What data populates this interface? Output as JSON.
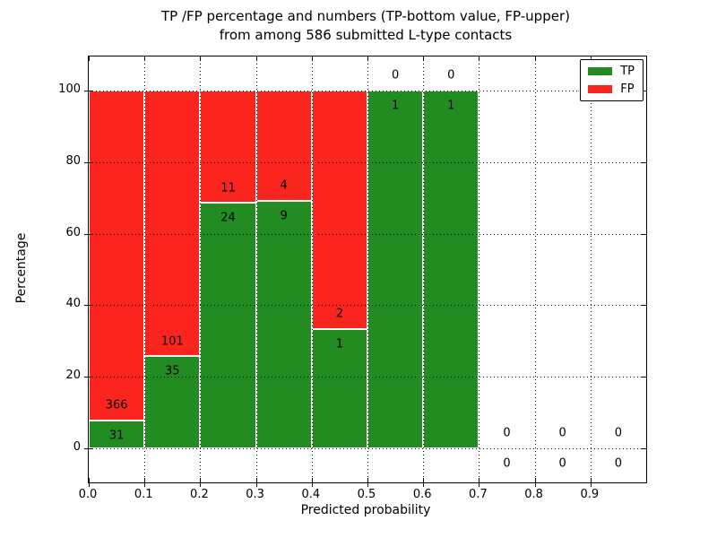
{
  "figure": {
    "title_line1": "TP /FP percentage and numbers (TP-bottom value, FP-upper)",
    "title_line2": "from among 586 submitted L-type contacts",
    "xlabel": "Predicted probability",
    "ylabel": "Percentage"
  },
  "legend": {
    "items": [
      {
        "label": "TP",
        "color": "#228B22"
      },
      {
        "label": "FP",
        "color": "#FA251E"
      }
    ]
  },
  "colors": {
    "tp_green": "#228B22",
    "fp_red": "#FA251E",
    "bar_edge": "#FFFFFF",
    "axis": "#000000",
    "background": "#FFFFFF"
  },
  "chart_data": {
    "type": "bar",
    "stacked": true,
    "title": "TP /FP percentage and numbers (TP-bottom value, FP-upper) from among 586 submitted L-type contacts",
    "xlabel": "Predicted probability",
    "ylabel": "Percentage",
    "xlim": [
      0.0,
      1.0
    ],
    "ylim": [
      -9.5,
      109.5
    ],
    "x_tick_values": [
      0.0,
      0.1,
      0.2,
      0.3,
      0.4,
      0.5,
      0.6,
      0.7,
      0.8,
      0.9
    ],
    "x_tick_labels": [
      "0.0",
      "0.1",
      "0.2",
      "0.3",
      "0.4",
      "0.5",
      "0.6",
      "0.7",
      "0.8",
      "0.9"
    ],
    "y_tick_values": [
      0,
      20,
      40,
      60,
      80,
      100
    ],
    "y_tick_labels": [
      "0",
      "20",
      "40",
      "60",
      "80",
      "100"
    ],
    "grid": true,
    "grid_style": "dotted",
    "legend_position": "upper right",
    "total_contacts": 586,
    "bin_width": 0.1,
    "bins": [
      {
        "x_start": 0.0,
        "x_end": 0.1,
        "tp": 31,
        "fp": 366,
        "tp_pct": 7.81,
        "fp_pct": 92.19
      },
      {
        "x_start": 0.1,
        "x_end": 0.2,
        "tp": 35,
        "fp": 101,
        "tp_pct": 25.74,
        "fp_pct": 74.26
      },
      {
        "x_start": 0.2,
        "x_end": 0.3,
        "tp": 24,
        "fp": 11,
        "tp_pct": 68.57,
        "fp_pct": 31.43
      },
      {
        "x_start": 0.3,
        "x_end": 0.4,
        "tp": 9,
        "fp": 4,
        "tp_pct": 69.23,
        "fp_pct": 30.77
      },
      {
        "x_start": 0.4,
        "x_end": 0.5,
        "tp": 1,
        "fp": 2,
        "tp_pct": 33.33,
        "fp_pct": 66.67
      },
      {
        "x_start": 0.5,
        "x_end": 0.6,
        "tp": 1,
        "fp": 0,
        "tp_pct": 100.0,
        "fp_pct": 0.0
      },
      {
        "x_start": 0.6,
        "x_end": 0.7,
        "tp": 1,
        "fp": 0,
        "tp_pct": 100.0,
        "fp_pct": 0.0
      },
      {
        "x_start": 0.7,
        "x_end": 0.8,
        "tp": 0,
        "fp": 0,
        "tp_pct": 0.0,
        "fp_pct": 0.0
      },
      {
        "x_start": 0.8,
        "x_end": 0.9,
        "tp": 0,
        "fp": 0,
        "tp_pct": 0.0,
        "fp_pct": 0.0
      },
      {
        "x_start": 0.9,
        "x_end": 1.0,
        "tp": 0,
        "fp": 0,
        "tp_pct": 0.0,
        "fp_pct": 0.0
      }
    ],
    "series": [
      {
        "name": "TP",
        "color": "#228B22",
        "counts": [
          31,
          35,
          24,
          9,
          1,
          1,
          1,
          0,
          0,
          0
        ]
      },
      {
        "name": "FP",
        "color": "#FA251E",
        "counts": [
          366,
          101,
          11,
          4,
          2,
          0,
          0,
          0,
          0,
          0
        ]
      }
    ]
  }
}
